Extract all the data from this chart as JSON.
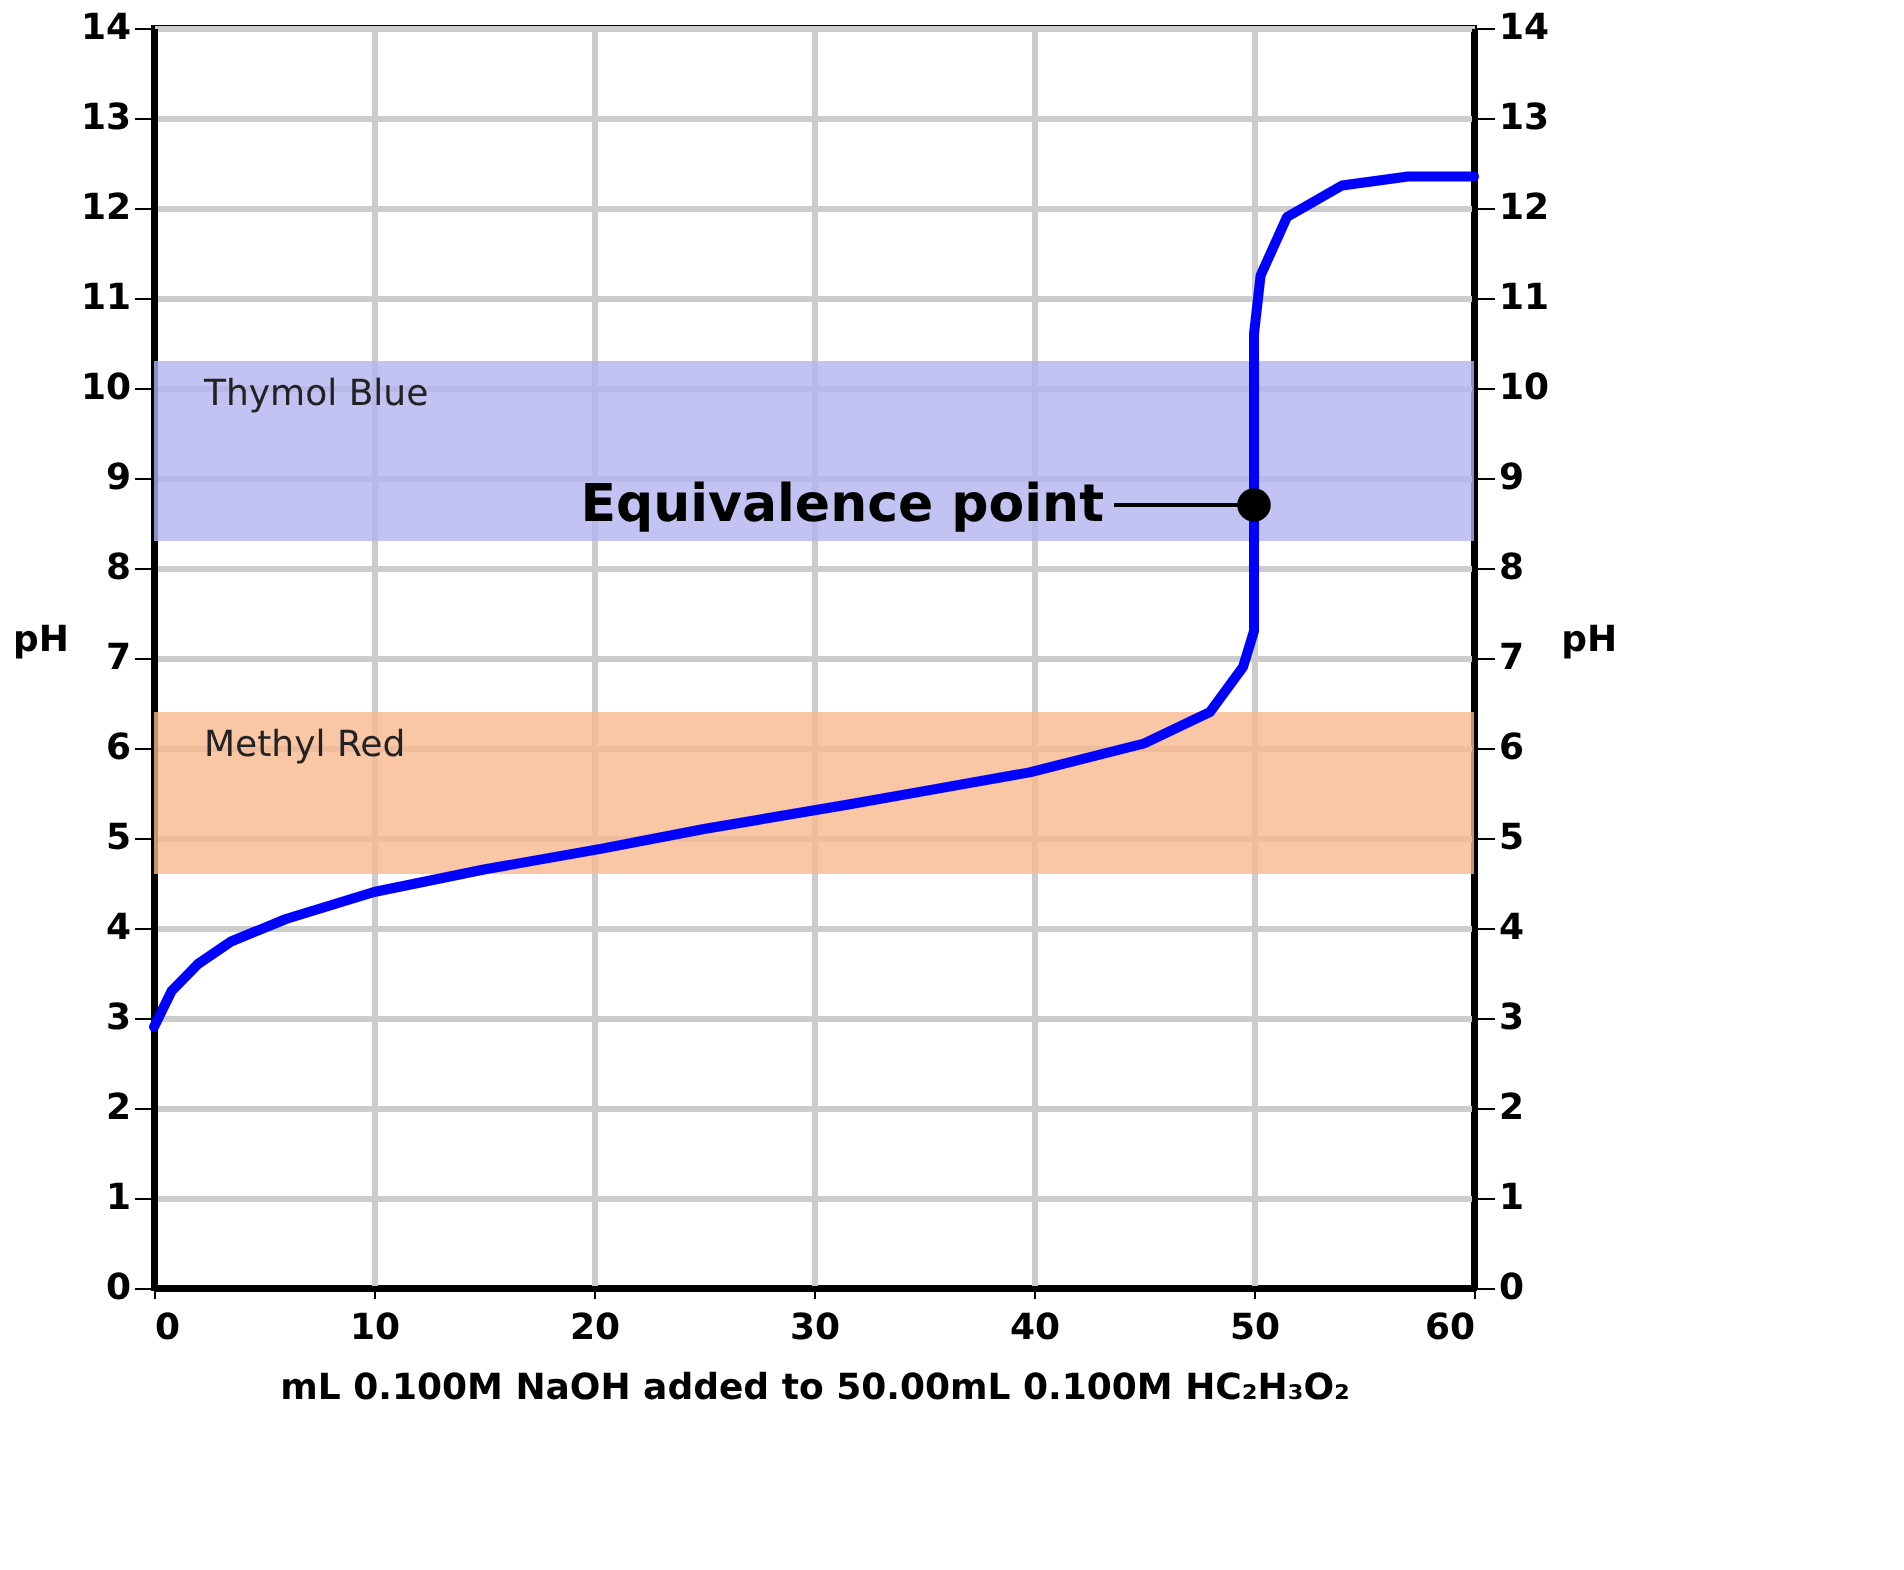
{
  "chart_data": {
    "type": "line",
    "xlabel": "mL 0.100M NaOH added to 50.00mL 0.100M HC₂H₃O₂",
    "ylabel": "pH",
    "y2label": "pH",
    "x": [
      0,
      0.8,
      2,
      3.5,
      6,
      10,
      15,
      20.3,
      25,
      31.5,
      35,
      39.8,
      45,
      48,
      49.5,
      50,
      50,
      50.3,
      51.5,
      54,
      57,
      60
    ],
    "series": [
      {
        "color": "#0000ff",
        "values": [
          2.9,
          3.3,
          3.6,
          3.85,
          4.1,
          4.4,
          4.65,
          4.88,
          5.1,
          5.37,
          5.52,
          5.73,
          6.05,
          6.4,
          6.9,
          7.3,
          10.6,
          11.25,
          11.9,
          12.25,
          12.35,
          12.35
        ]
      }
    ],
    "xlim": [
      0,
      60
    ],
    "xticks": [
      0,
      10,
      20,
      30,
      40,
      50,
      60
    ],
    "ylim": [
      0,
      14
    ],
    "yticks": [
      0,
      1,
      2,
      3,
      4,
      5,
      6,
      7,
      8,
      9,
      10,
      11,
      12,
      13,
      14
    ],
    "y2lim": [
      0,
      14
    ],
    "y2ticks": [
      0,
      1,
      2,
      3,
      4,
      5,
      6,
      7,
      8,
      9,
      10,
      11,
      12,
      13,
      14
    ],
    "bands": [
      {
        "axis": "y",
        "from": 8.3,
        "to": 10.3,
        "label": "Thymol Blue",
        "color": "#b4b4f0"
      },
      {
        "axis": "y",
        "from": 4.6,
        "to": 6.4,
        "label": "Methyl Red",
        "color": "#f8b890"
      }
    ],
    "annotations": [
      {
        "text": "Equivalence point",
        "x": 50,
        "y": 8.7
      }
    ],
    "grid": true,
    "marker": "none",
    "line_style": "solid"
  }
}
